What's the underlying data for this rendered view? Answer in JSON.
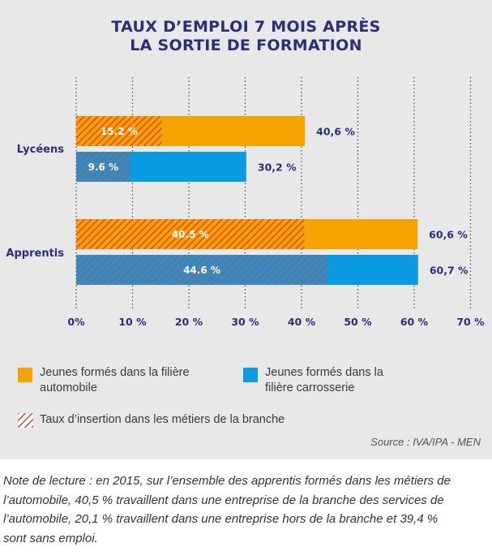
{
  "chart_data": {
    "type": "bar",
    "orientation": "horizontal",
    "title_line1": "TAUX D’EMPLOI 7 MOIS APRÈS",
    "title_line2": "LA SORTIE DE FORMATION",
    "categories": [
      "Lycéens",
      "Apprentis"
    ],
    "series": [
      {
        "name": "Jeunes formés dans la filière automobile",
        "color": "#f5a300",
        "values": [
          40.6,
          60.6
        ],
        "value_labels": [
          "40,6 %",
          "60,6 %"
        ],
        "insertion": [
          15.2,
          40.5
        ],
        "insertion_labels": [
          "15.2 %",
          "40.5 %"
        ]
      },
      {
        "name": "Jeunes formés dans la filière carrosserie",
        "color": "#0a9be3",
        "values": [
          30.2,
          60.7
        ],
        "value_labels": [
          "30,2 %",
          "60,7 %"
        ],
        "insertion": [
          9.6,
          44.6
        ],
        "insertion_labels": [
          "9.6 %",
          "44.6 %"
        ]
      }
    ],
    "xlim": [
      0,
      70
    ],
    "xticks": [
      0,
      10,
      20,
      30,
      40,
      50,
      60,
      70
    ],
    "xtick_labels": [
      "0%",
      "10 %",
      "20 %",
      "30 %",
      "40 %",
      "50 %",
      "60 %",
      "70 %"
    ],
    "grid": "vertical dotted",
    "hatch_color": "#e8412c"
  },
  "legend": {
    "automobile_line1": "Jeunes formés dans la filière",
    "automobile_line2": "automobile",
    "carrosserie_line1": "Jeunes formés dans la",
    "carrosserie_line2": "filière carrosserie",
    "insertion": "Taux d’insertion dans les métiers de la branche"
  },
  "source": "Source : IVA/IPA - MEN",
  "note": "Note de lecture : en 2015, sur l’ensemble des apprentis formés dans les métiers de l’automobile, 40,5 % travaillent dans une entreprise de la branche des services de l’automobile, 20,1 % travaillent dans une entreprise hors de la branche et 39,4 % sont sans emploi."
}
